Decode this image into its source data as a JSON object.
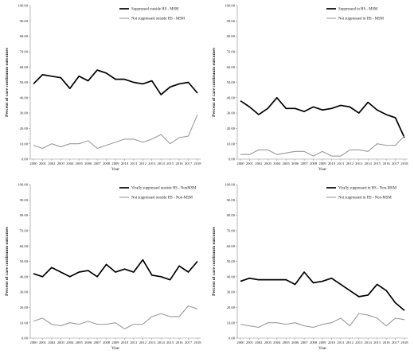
{
  "chart_data": [
    {
      "type": "line",
      "title": "",
      "xlabel": "Year",
      "ylabel": "Percent of care continuum outcomes",
      "ylim": [
        0,
        100
      ],
      "legend_position": "top-right",
      "grid": false,
      "x": [
        "2000",
        "2001",
        "2002",
        "2003",
        "2004",
        "2005",
        "2006",
        "2007",
        "2008",
        "2009",
        "2010",
        "2011",
        "2012",
        "2013",
        "2014",
        "2015",
        "2016",
        "2017",
        "2018"
      ],
      "yticks": [
        "0.00",
        "10.00",
        "20.00",
        "30.00",
        "40.00",
        "50.00",
        "60.00",
        "70.00",
        "80.00",
        "90.00",
        "100.00"
      ],
      "series": [
        {
          "name": "Suppressed outside HS - MSM",
          "color": "#000000",
          "values": [
            49,
            55,
            54,
            53,
            46,
            54,
            51,
            58,
            56,
            52,
            52,
            50,
            49,
            51,
            42,
            47,
            49,
            50,
            43
          ]
        },
        {
          "name": "Not suppressed outside HS - MSM",
          "color": "#9a9a9a",
          "values": [
            9,
            7,
            10,
            8,
            10,
            10,
            12,
            7,
            9,
            11,
            13,
            13,
            11,
            13,
            16,
            10,
            14,
            15,
            29
          ]
        }
      ]
    },
    {
      "type": "line",
      "title": "",
      "xlabel": "Year",
      "ylabel": "Percent of care continuum outcomes",
      "ylim": [
        0,
        100
      ],
      "legend_position": "top-right",
      "grid": false,
      "x": [
        "2000",
        "2001",
        "2002",
        "2003",
        "2004",
        "2005",
        "2006",
        "2007",
        "2008",
        "2009",
        "2010",
        "2011",
        "2012",
        "2013",
        "2014",
        "2015",
        "2016",
        "2017",
        "2018"
      ],
      "yticks": [
        "0.00",
        "10.00",
        "20.00",
        "30.00",
        "40.00",
        "50.00",
        "60.00",
        "70.00",
        "80.00",
        "90.00",
        "100.00"
      ],
      "series": [
        {
          "name": "Suppressed in HS - MSM",
          "color": "#000000",
          "values": [
            38,
            34,
            29,
            33,
            40,
            33,
            33,
            31,
            34,
            32,
            33,
            35,
            34,
            30,
            37,
            32,
            29,
            27,
            14
          ]
        },
        {
          "name": "Not suppressed in HS - MSM",
          "color": "#9a9a9a",
          "values": [
            3,
            3,
            6,
            6,
            3,
            4,
            5,
            5,
            2,
            5,
            2,
            2,
            6,
            6,
            5,
            10,
            9,
            9,
            15
          ]
        }
      ]
    },
    {
      "type": "line",
      "title": "",
      "xlabel": "Year",
      "ylabel": "Percent of care continuum outcomes",
      "ylim": [
        0,
        100
      ],
      "legend_position": "top-right",
      "grid": false,
      "x": [
        "2000",
        "2001",
        "2002",
        "2003",
        "2004",
        "2005",
        "2006",
        "2007",
        "2008",
        "2009",
        "2010",
        "2011",
        "2012",
        "2013",
        "2014",
        "2015",
        "2016",
        "2017",
        "2018"
      ],
      "yticks": [
        "0.00",
        "10.00",
        "20.00",
        "30.00",
        "40.00",
        "50.00",
        "60.00",
        "70.00",
        "80.00",
        "90.00",
        "100.00"
      ],
      "series": [
        {
          "name": "Virally suppressed outside HS - NonMSM",
          "color": "#000000",
          "values": [
            42,
            40,
            46,
            43,
            40,
            43,
            44,
            40,
            48,
            43,
            45,
            43,
            51,
            41,
            40,
            38,
            47,
            43,
            50
          ]
        },
        {
          "name": "Not suppressed outside HS - Non-MSM",
          "color": "#9a9a9a",
          "values": [
            11,
            13,
            9,
            8,
            10,
            9,
            11,
            9,
            9,
            10,
            6,
            9,
            9,
            14,
            16,
            14,
            14,
            21,
            19
          ]
        }
      ]
    },
    {
      "type": "line",
      "title": "",
      "xlabel": "Year",
      "ylabel": "Percent of care continuum outcomes",
      "ylim": [
        0,
        100
      ],
      "legend_position": "top-right",
      "grid": false,
      "x": [
        "2000",
        "2001",
        "2002",
        "2003",
        "2004",
        "2005",
        "2006",
        "2007",
        "2008",
        "2009",
        "2010",
        "2011",
        "2012",
        "2013",
        "2014",
        "2015",
        "2016",
        "2017",
        "2018"
      ],
      "yticks": [
        "0.00",
        "10.00",
        "20.00",
        "30.00",
        "40.00",
        "50.00",
        "60.00",
        "70.00",
        "80.00",
        "90.00",
        "100.00"
      ],
      "series": [
        {
          "name": "Virally suppressed in HS - Non-MSM",
          "color": "#000000",
          "values": [
            37,
            39,
            38,
            38,
            38,
            38,
            35,
            43,
            36,
            37,
            39,
            35,
            31,
            27,
            28,
            35,
            31,
            23,
            18
          ]
        },
        {
          "name": "Not suppressed in HS - Non-MSM",
          "color": "#9a9a9a",
          "values": [
            9,
            8,
            7,
            10,
            10,
            9,
            10,
            8,
            7,
            9,
            10,
            13,
            8,
            16,
            15,
            13,
            8,
            13,
            12
          ]
        }
      ]
    }
  ]
}
